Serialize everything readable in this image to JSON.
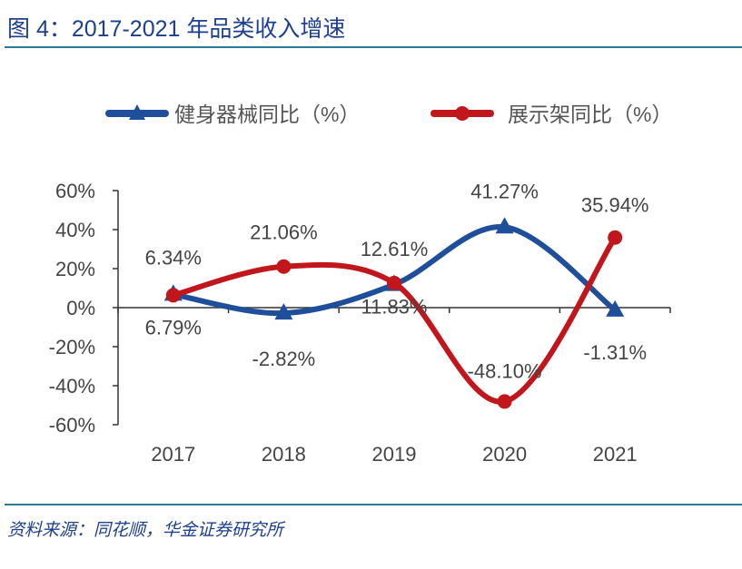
{
  "title": "图 4：2017-2021 年品类收入增速",
  "source": "资料来源：同花顺，华金证券研究所",
  "chart_data": {
    "type": "line",
    "categories": [
      "2017",
      "2018",
      "2019",
      "2020",
      "2021"
    ],
    "ylim": [
      -60,
      60
    ],
    "yticks": [
      60,
      40,
      20,
      0,
      -20,
      -40,
      -60
    ],
    "ytick_labels": [
      "60%",
      "40%",
      "20%",
      "0%",
      "-20%",
      "-40%",
      "-60%"
    ],
    "legend_position": "top",
    "grid": false,
    "smooth": true,
    "series": [
      {
        "name": "健身器械同比（%）",
        "color": "#1f4e9a",
        "marker": "triangle",
        "values": [
          6.79,
          -2.82,
          11.83,
          41.27,
          -1.31
        ],
        "labels": [
          "6.79%",
          "-2.82%",
          "11.83%",
          "41.27%",
          "-1.31%"
        ]
      },
      {
        "name": "展示架同比（%）",
        "color": "#c0161c",
        "marker": "circle",
        "values": [
          6.34,
          21.06,
          12.61,
          -48.1,
          35.94
        ],
        "labels": [
          "6.34%",
          "21.06%",
          "12.61%",
          "-48.10%",
          "35.94%"
        ]
      }
    ]
  }
}
